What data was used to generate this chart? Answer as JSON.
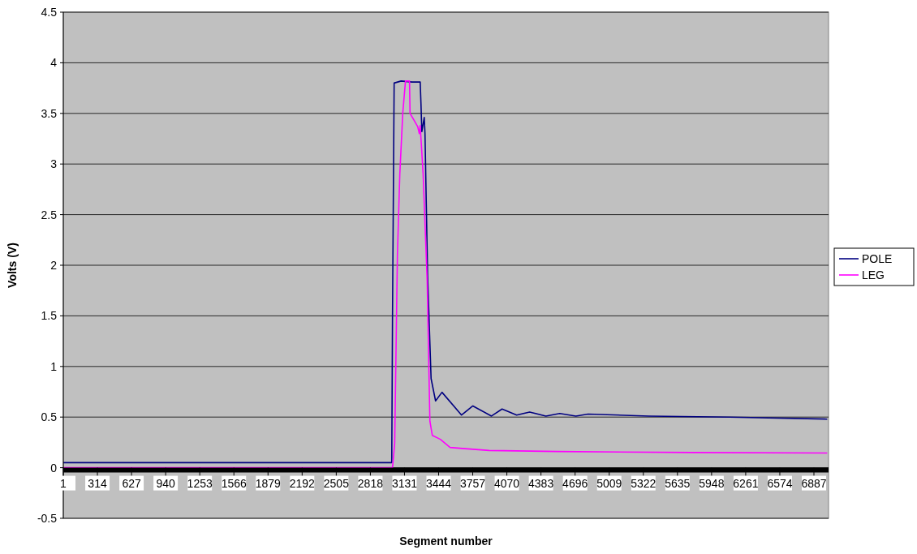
{
  "chart_data": {
    "type": "line",
    "xlabel": "Segment number",
    "ylabel": "Volts (V)",
    "xlim": [
      1,
      7021
    ],
    "xticks": [
      1,
      314,
      627,
      940,
      1253,
      1566,
      1879,
      2192,
      2505,
      2818,
      3131,
      3444,
      3757,
      4070,
      4383,
      4696,
      5009,
      5322,
      5635,
      5948,
      6261,
      6574,
      6887
    ],
    "ylim": [
      -0.5,
      4.5
    ],
    "yticks": [
      -0.5,
      0,
      0.5,
      1,
      1.5,
      2,
      2.5,
      3,
      3.5,
      4,
      4.5
    ],
    "grid": "y",
    "legend": "right",
    "marker": "none",
    "line_style": "solid",
    "series": [
      {
        "name": "POLE",
        "color": "#000080",
        "x": [
          1,
          3014,
          3021,
          3036,
          3100,
          3200,
          3275,
          3282,
          3290,
          3312,
          3319,
          3343,
          3375,
          3416,
          3475,
          3654,
          3758,
          3929,
          4026,
          4160,
          4279,
          4428,
          4555,
          4703,
          4815,
          5373,
          6117,
          7009
        ],
        "values": [
          0.05,
          0.05,
          1.5,
          3.8,
          3.82,
          3.81,
          3.81,
          3.6,
          3.32,
          3.46,
          3.3,
          1.9,
          0.88,
          0.66,
          0.745,
          0.52,
          0.61,
          0.51,
          0.58,
          0.52,
          0.55,
          0.51,
          0.535,
          0.51,
          0.53,
          0.51,
          0.5,
          0.48
        ]
      },
      {
        "name": "LEG",
        "color": "#ff00ff",
        "x": [
          1,
          3021,
          3041,
          3066,
          3088,
          3115,
          3140,
          3177,
          3182,
          3215,
          3252,
          3267,
          3275,
          3302,
          3339,
          3364,
          3386,
          3460,
          3549,
          3661,
          3907,
          4532,
          5767,
          7009
        ],
        "values": [
          0,
          0,
          0.24,
          2.1,
          2.9,
          3.5,
          3.82,
          3.82,
          3.5,
          3.44,
          3.37,
          3.3,
          3.38,
          2.9,
          1.85,
          0.46,
          0.32,
          0.28,
          0.2,
          0.19,
          0.17,
          0.16,
          0.15,
          0.145
        ]
      }
    ]
  }
}
